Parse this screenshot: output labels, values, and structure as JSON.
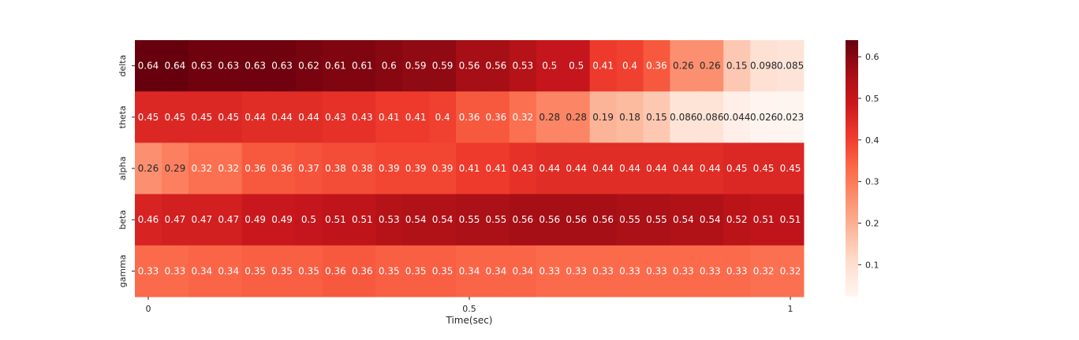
{
  "chart_data": {
    "type": "heatmap",
    "title": "",
    "xlabel": "Time(sec)",
    "ylabel": "",
    "rows": [
      "delta",
      "theta",
      "alpha",
      "beta",
      "gamma"
    ],
    "x_tick_labels": [
      {
        "col": 0,
        "label": "0"
      },
      {
        "col": 12,
        "label": "0.5"
      },
      {
        "col": 24,
        "label": "1"
      }
    ],
    "colormap": "Reds",
    "color_range": [
      0.023,
      0.64
    ],
    "colorbar_ticks": [
      "0.1",
      "0.2",
      "0.3",
      "0.4",
      "0.5",
      "0.6"
    ],
    "values": [
      [
        0.64,
        0.64,
        0.63,
        0.63,
        0.63,
        0.63,
        0.62,
        0.61,
        0.61,
        0.6,
        0.59,
        0.59,
        0.56,
        0.56,
        0.53,
        0.5,
        0.5,
        0.41,
        0.4,
        0.36,
        0.26,
        0.26,
        0.15,
        0.098,
        0.085
      ],
      [
        0.45,
        0.45,
        0.45,
        0.45,
        0.44,
        0.44,
        0.44,
        0.43,
        0.43,
        0.41,
        0.41,
        0.4,
        0.36,
        0.36,
        0.32,
        0.28,
        0.28,
        0.19,
        0.18,
        0.15,
        0.086,
        0.086,
        0.044,
        0.026,
        0.023
      ],
      [
        0.26,
        0.29,
        0.32,
        0.32,
        0.36,
        0.36,
        0.37,
        0.38,
        0.38,
        0.39,
        0.39,
        0.39,
        0.41,
        0.41,
        0.43,
        0.44,
        0.44,
        0.44,
        0.44,
        0.44,
        0.44,
        0.44,
        0.45,
        0.45,
        0.45
      ],
      [
        0.46,
        0.47,
        0.47,
        0.47,
        0.49,
        0.49,
        0.5,
        0.51,
        0.51,
        0.53,
        0.54,
        0.54,
        0.55,
        0.55,
        0.56,
        0.56,
        0.56,
        0.56,
        0.55,
        0.55,
        0.54,
        0.54,
        0.52,
        0.51,
        0.51
      ],
      [
        0.33,
        0.33,
        0.34,
        0.34,
        0.35,
        0.35,
        0.35,
        0.36,
        0.36,
        0.35,
        0.35,
        0.35,
        0.34,
        0.34,
        0.34,
        0.33,
        0.33,
        0.33,
        0.33,
        0.33,
        0.33,
        0.33,
        0.33,
        0.32,
        0.32
      ]
    ]
  }
}
